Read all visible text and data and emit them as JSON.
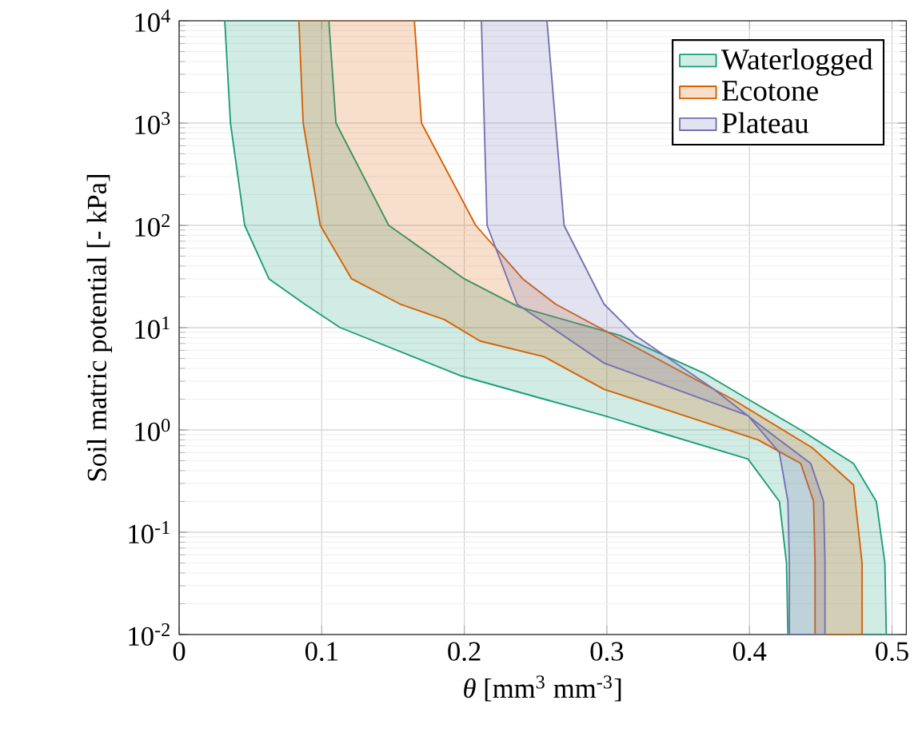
{
  "chart_data": {
    "type": "area",
    "xlabel": "*θ* [mm$^{3}$ mm$^{-3}$]",
    "ylabel": "Soil matric potential [- kPa]",
    "xlim": [
      0,
      0.51
    ],
    "ylim": [
      0.01,
      10000
    ],
    "log": "y",
    "grid": true,
    "legend": "top right",
    "xticks": [
      0,
      0.1,
      0.2,
      0.3,
      0.4,
      0.5
    ],
    "yticks": [
      {
        "value": 0.01,
        "label": "10$^{-2}$"
      },
      {
        "value": 0.1,
        "label": "10$^{-1}$"
      },
      {
        "value": 1,
        "label": "10$^{0}$"
      },
      {
        "value": 10,
        "label": "10$^{1}$"
      },
      {
        "value": 100,
        "label": "10$^{2}$"
      },
      {
        "value": 1000,
        "label": "10$^{3}$"
      },
      {
        "value": 10000,
        "label": "10$^{4}$"
      }
    ],
    "series": [
      {
        "name": "Waterlogged",
        "color": "#1b9e77",
        "x": [
          0.032,
          0.036,
          0.046,
          0.063,
          0.088,
          0.113,
          0.197,
          0.256,
          0.298,
          0.331,
          0.399,
          0.421,
          0.426,
          0.427,
          0.496,
          0.495,
          0.489,
          0.473,
          0.436,
          0.399,
          0.368,
          0.309,
          0.238,
          0.2,
          0.147,
          0.11,
          0.105
        ],
        "values": [
          10000,
          1000,
          100,
          30,
          17,
          10,
          3.4,
          2,
          1.38,
          1,
          0.52,
          0.2,
          0.05,
          0.01,
          0.01,
          0.05,
          0.2,
          0.47,
          1,
          2,
          3.6,
          8.4,
          16,
          30,
          100,
          1000,
          10000
        ]
      },
      {
        "name": "Ecotone",
        "color": "#d95f02",
        "x": [
          0.084,
          0.087,
          0.099,
          0.121,
          0.155,
          0.186,
          0.211,
          0.256,
          0.298,
          0.406,
          0.436,
          0.445,
          0.446,
          0.446,
          0.479,
          0.479,
          0.473,
          0.444,
          0.388,
          0.264,
          0.241,
          0.208,
          0.17,
          0.165
        ],
        "values": [
          10000,
          1000,
          100,
          30,
          17,
          12,
          7.4,
          5.2,
          2.5,
          0.8,
          0.47,
          0.2,
          0.05,
          0.01,
          0.01,
          0.05,
          0.29,
          0.67,
          2,
          17,
          30,
          100,
          1000,
          10000
        ]
      },
      {
        "name": "Plateau",
        "color": "#7570b3",
        "x": [
          0.212,
          0.216,
          0.237,
          0.298,
          0.399,
          0.421,
          0.427,
          0.428,
          0.428,
          0.453,
          0.453,
          0.452,
          0.443,
          0.409,
          0.375,
          0.32,
          0.298,
          0.27,
          0.258
        ],
        "values": [
          10000,
          100,
          17,
          4.5,
          1.38,
          0.6,
          0.2,
          0.05,
          0.01,
          0.01,
          0.05,
          0.2,
          0.47,
          1.07,
          2.5,
          8.4,
          17,
          100,
          10000
        ]
      }
    ]
  }
}
